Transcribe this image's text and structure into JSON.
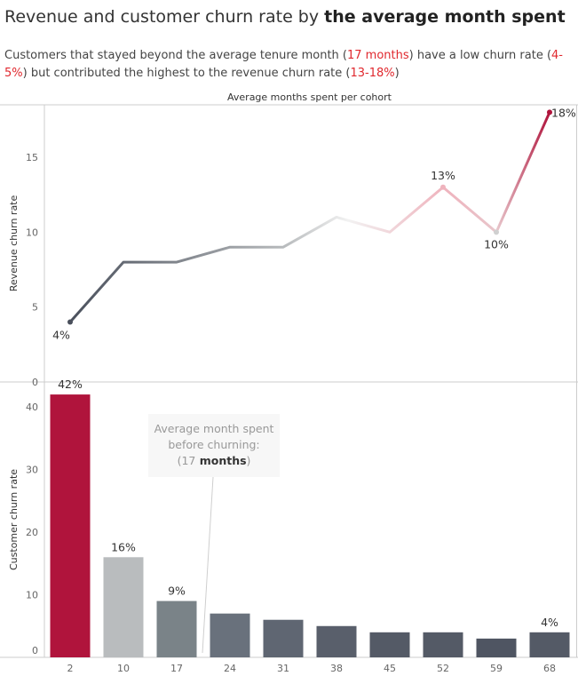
{
  "title": {
    "main": "Revenue and customer churn rate by ",
    "bold": "the average month spent"
  },
  "subtitle": {
    "p1": "Customers that stayed beyond the average tenure month (",
    "h1": "17 months",
    "p2": ") have a low churn rate (",
    "h2": "4-5%",
    "p3": ") but contributed the highest to the revenue churn rate (",
    "h3": "13-18%",
    "p4": ")"
  },
  "x_header": "Average months spent per cohort",
  "annotation": {
    "line1": "Average month spent",
    "line2": "before churning:",
    "pre": "(",
    "num": "17",
    "bold": " months",
    "post": ")"
  },
  "colors": {
    "highlight": "#b0143c",
    "accent_text": "#e0282e",
    "grid": "#cccccc",
    "dark": "#545b66"
  },
  "chart_data": [
    {
      "type": "line",
      "title": "",
      "xlabel": "",
      "ylabel": "Revenue churn rate",
      "ylim": [
        0,
        18.5
      ],
      "yticks": [
        0,
        5,
        10,
        15
      ],
      "x": [
        "2",
        "10",
        "17",
        "24",
        "31",
        "38",
        "45",
        "52",
        "59",
        "68"
      ],
      "values": [
        4,
        8,
        8,
        9,
        9,
        11,
        10,
        13,
        10,
        18
      ],
      "point_labels": [
        {
          "index": 0,
          "text": "4%"
        },
        {
          "index": 7,
          "text": "13%"
        },
        {
          "index": 8,
          "text": "10%"
        },
        {
          "index": 9,
          "text": "18%"
        }
      ],
      "grid": false
    },
    {
      "type": "bar",
      "title": "",
      "xlabel": "",
      "ylabel": "Customer churn rate",
      "ylim": [
        0,
        44
      ],
      "yticks": [
        0,
        10,
        20,
        30,
        40
      ],
      "categories": [
        "2",
        "10",
        "17",
        "24",
        "31",
        "38",
        "45",
        "52",
        "59",
        "68"
      ],
      "values": [
        42,
        16,
        9,
        7,
        6,
        5,
        4,
        4,
        3,
        4
      ],
      "bar_colors": [
        "#b0143c",
        "#b9bcbe",
        "#7a8388",
        "#69717c",
        "#5f6672",
        "#595f6b",
        "#545a66",
        "#545a66",
        "#4f5562",
        "#545a66"
      ],
      "bar_labels": [
        {
          "index": 0,
          "text": "42%"
        },
        {
          "index": 1,
          "text": "16%"
        },
        {
          "index": 2,
          "text": "9%"
        },
        {
          "index": 9,
          "text": "4%"
        }
      ],
      "grid": false
    }
  ]
}
